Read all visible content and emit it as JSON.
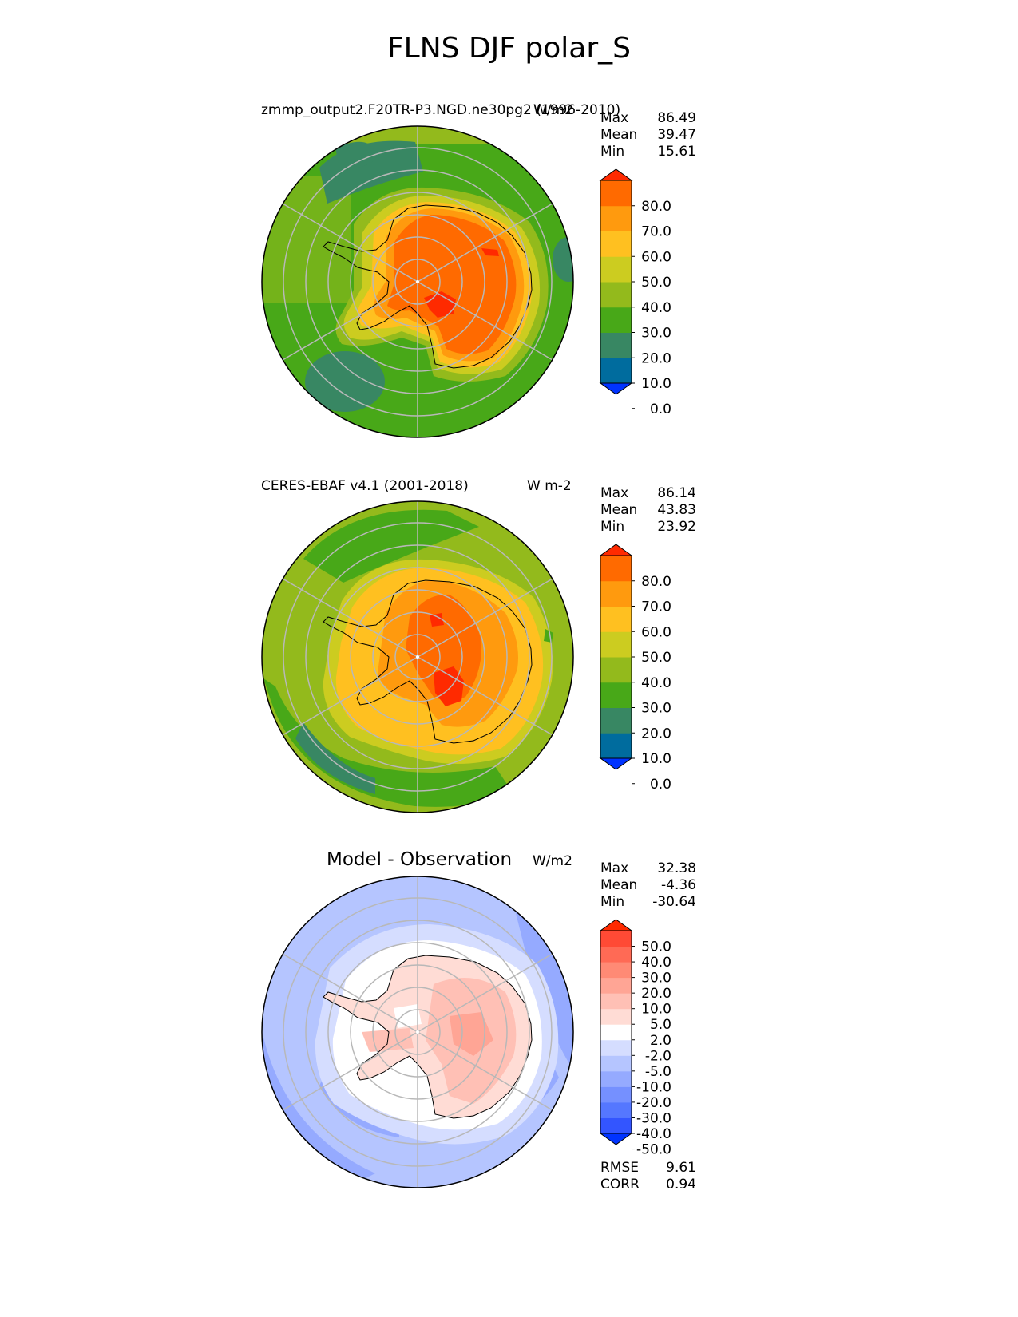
{
  "title": "FLNS DJF polar_S",
  "panels": [
    {
      "subtitle": "zmmp_output2.F20TR-P3.NGD.ne30pg2 (1996-2010)",
      "units": "W/m2",
      "stats": [
        {
          "label": "Max",
          "value": "86.49"
        },
        {
          "label": "Mean",
          "value": "39.47"
        },
        {
          "label": "Min",
          "value": "15.61"
        }
      ],
      "colorbar_ticks": [
        "80.0",
        "70.0",
        "60.0",
        "50.0",
        "40.0",
        "30.0",
        "20.0",
        "10.0",
        "0.0"
      ]
    },
    {
      "subtitle": "CERES-EBAF v4.1 (2001-2018)",
      "units": "W m-2",
      "stats": [
        {
          "label": "Max",
          "value": "86.14"
        },
        {
          "label": "Mean",
          "value": "43.83"
        },
        {
          "label": "Min",
          "value": "23.92"
        }
      ],
      "colorbar_ticks": [
        "80.0",
        "70.0",
        "60.0",
        "50.0",
        "40.0",
        "30.0",
        "20.0",
        "10.0",
        "0.0"
      ]
    },
    {
      "subtitle": "Model - Observation",
      "units": "W/m2",
      "stats": [
        {
          "label": "Max",
          "value": "32.38"
        },
        {
          "label": "Mean",
          "value": "-4.36"
        },
        {
          "label": "Min",
          "value": "-30.64"
        }
      ],
      "colorbar_ticks": [
        "50.0",
        "40.0",
        "30.0",
        "20.0",
        "10.0",
        "5.0",
        "2.0",
        "-2.0",
        "-5.0",
        "-10.0",
        "-20.0",
        "-30.0",
        "-40.0",
        "-50.0"
      ],
      "metrics": [
        {
          "label": "RMSE",
          "value": "9.61"
        },
        {
          "label": "CORR",
          "value": "0.94"
        }
      ]
    }
  ],
  "colors": {
    "abs_bins": [
      "#0033ff",
      "#006c9e",
      "#388763",
      "#48a818",
      "#93ba1c",
      "#cccc20",
      "#ffc020",
      "#ff9a0e",
      "#ff6a00",
      "#ff2a00"
    ],
    "diff_bins": [
      "#0033ff",
      "#3355ff",
      "#5577ff",
      "#7590ff",
      "#95aaff",
      "#b5c5ff",
      "#d5ddff",
      "#ffffff",
      "#ffdcd5",
      "#ffc0b5",
      "#ffa595",
      "#ff8a75",
      "#ff6a55",
      "#ff4a35",
      "#ff2a00"
    ]
  }
}
